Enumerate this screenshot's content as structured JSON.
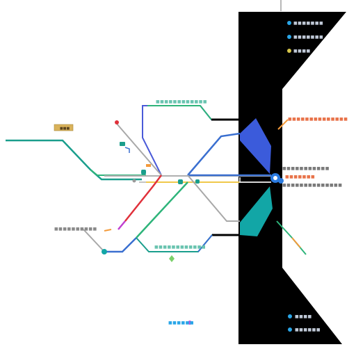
{
  "labels": {
    "panel_top_1": "■■■■■■■",
    "panel_top_2": "■■■■■■■",
    "panel_top_3": "■■■■",
    "panel_bottom_1": "■■■■",
    "panel_bottom_2": "■■■■■■",
    "top_center": "■■■■■■■■■■■■",
    "right_orange": "■■■■■■■■■■■■■■",
    "right_gray_1": "■■■■■■■■■■■",
    "right_gray_2": "■■■■■■■",
    "right_gray_3": "■■■■■■■■■■■■■■",
    "left_gray": "■■■■■■■■■■",
    "bottom_center": "■■■■■■■■■■■■",
    "bottom_tiny": "■■■■■■",
    "tag_box": "■■■"
  },
  "colors": {
    "panel": "#000000",
    "teal": "#1a9e8c",
    "green_line": "#2eb47a",
    "blue_line": "#3a6fd0",
    "indigo_line": "#4a5ad8",
    "gray_line": "#a8a8a8",
    "yellow_line": "#f0c84a",
    "red_line": "#e0303a",
    "magenta_line": "#c040d0",
    "orange": "#f39a3a",
    "blue_node": "#2a7adf",
    "blue_triangle": "#3b5bdb",
    "teal_triangle": "#12a6a6",
    "tag_fill": "#d9b25a",
    "salmon_text": "#e8734a",
    "gray_text": "#8a8a8a",
    "dot_blue": "#2aa6e8",
    "dot_yellow": "#d6c64a"
  }
}
